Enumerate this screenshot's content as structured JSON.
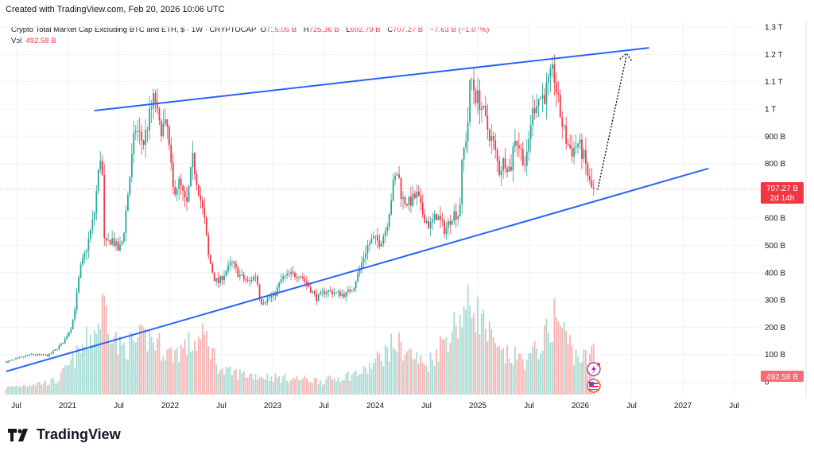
{
  "created_by": "Created with TradingView.com, Feb 20, 2026 10:06 UTC",
  "legend": {
    "title": "Crypto Total Market Cap Excluding BTC and ETH, $ · 1W · CRYPTOCAP",
    "open_label": "O",
    "open": "715.05 B",
    "high_label": "H",
    "high": "725.36 B",
    "low_label": "L",
    "low": "692.79 B",
    "close_label": "C",
    "close": "707.27 B",
    "change": "−7.63 B (−1.07%)",
    "vol_label": "Vol",
    "vol": "492.58 B"
  },
  "price_label": {
    "value": "707.27 B",
    "countdown": "2d 14h"
  },
  "volume_label": "492.58 B",
  "logo_text": "TradingView",
  "icons": [
    "lightning-icon",
    "us-flag-icon",
    "tradingview-logo-icon"
  ],
  "colors": {
    "up": "#26a69a",
    "down": "#f23645",
    "trendline": "#2962ff",
    "up_volume": "#a6dbd4",
    "down_volume": "#f7b3b1"
  },
  "chart_data": {
    "type": "candlestick",
    "interval": "1W",
    "x_unit": "decimal year",
    "y_unit": "B",
    "ylim": [
      0,
      1300
    ],
    "y_ticks": [
      {
        "v": 1300,
        "label": "1.3 T"
      },
      {
        "v": 1200,
        "label": "1.2 T"
      },
      {
        "v": 1100,
        "label": "1.1 T"
      },
      {
        "v": 1000,
        "label": "1 T"
      },
      {
        "v": 900,
        "label": "900 B"
      },
      {
        "v": 800,
        "label": "800 B"
      },
      {
        "v": 600,
        "label": "600 B"
      },
      {
        "v": 500,
        "label": "500 B"
      },
      {
        "v": 400,
        "label": "400 B"
      },
      {
        "v": 300,
        "label": "300 B"
      },
      {
        "v": 200,
        "label": "200 B"
      },
      {
        "v": 100,
        "label": "100 B"
      },
      {
        "v": 0,
        "label": "0"
      }
    ],
    "x_ticks": [
      {
        "t": 2020.5,
        "label": "Jul"
      },
      {
        "t": 2021,
        "label": "2021"
      },
      {
        "t": 2021.5,
        "label": "Jul"
      },
      {
        "t": 2022,
        "label": "2022"
      },
      {
        "t": 2022.5,
        "label": "Jul"
      },
      {
        "t": 2023,
        "label": "2023"
      },
      {
        "t": 2023.5,
        "label": "Jul"
      },
      {
        "t": 2024,
        "label": "2024"
      },
      {
        "t": 2024.5,
        "label": "Jul"
      },
      {
        "t": 2025,
        "label": "2025"
      },
      {
        "t": 2025.5,
        "label": "Jul"
      },
      {
        "t": 2026,
        "label": "2026"
      },
      {
        "t": 2026.5,
        "label": "Jul"
      },
      {
        "t": 2027,
        "label": "2027"
      },
      {
        "t": 2027.5,
        "label": "Jul"
      }
    ],
    "close_path": [
      [
        2020.4,
        73
      ],
      [
        2020.65,
        100
      ],
      [
        2020.81,
        96
      ],
      [
        2020.88,
        117
      ],
      [
        2020.96,
        146
      ],
      [
        2021.04,
        204
      ],
      [
        2021.08,
        290
      ],
      [
        2021.12,
        408
      ],
      [
        2021.19,
        495
      ],
      [
        2021.26,
        612
      ],
      [
        2021.29,
        730
      ],
      [
        2021.33,
        860
      ],
      [
        2021.36,
        495
      ],
      [
        2021.43,
        525
      ],
      [
        2021.5,
        480
      ],
      [
        2021.54,
        525
      ],
      [
        2021.6,
        730
      ],
      [
        2021.66,
        933
      ],
      [
        2021.74,
        875
      ],
      [
        2021.81,
        990
      ],
      [
        2021.85,
        1050
      ],
      [
        2021.89,
        933
      ],
      [
        2021.97,
        933
      ],
      [
        2022.03,
        700
      ],
      [
        2022.09,
        730
      ],
      [
        2022.16,
        641
      ],
      [
        2022.22,
        816
      ],
      [
        2022.28,
        700
      ],
      [
        2022.34,
        583
      ],
      [
        2022.37,
        466
      ],
      [
        2022.43,
        379
      ],
      [
        2022.47,
        364
      ],
      [
        2022.55,
        408
      ],
      [
        2022.6,
        437
      ],
      [
        2022.67,
        393
      ],
      [
        2022.76,
        364
      ],
      [
        2022.84,
        393
      ],
      [
        2022.88,
        291
      ],
      [
        2022.96,
        306
      ],
      [
        2023.02,
        320
      ],
      [
        2023.09,
        379
      ],
      [
        2023.17,
        393
      ],
      [
        2023.27,
        393
      ],
      [
        2023.35,
        350
      ],
      [
        2023.43,
        306
      ],
      [
        2023.52,
        335
      ],
      [
        2023.6,
        326
      ],
      [
        2023.71,
        320
      ],
      [
        2023.79,
        350
      ],
      [
        2023.87,
        437
      ],
      [
        2023.92,
        495
      ],
      [
        2023.98,
        525
      ],
      [
        2024.05,
        510
      ],
      [
        2024.11,
        568
      ],
      [
        2024.18,
        730
      ],
      [
        2024.22,
        773
      ],
      [
        2024.26,
        670
      ],
      [
        2024.33,
        656
      ],
      [
        2024.41,
        685
      ],
      [
        2024.45,
        627
      ],
      [
        2024.53,
        568
      ],
      [
        2024.6,
        612
      ],
      [
        2024.68,
        554
      ],
      [
        2024.76,
        618
      ],
      [
        2024.82,
        612
      ],
      [
        2024.85,
        816
      ],
      [
        2024.9,
        933
      ],
      [
        2024.93,
        1122
      ],
      [
        2024.98,
        1050
      ],
      [
        2025.03,
        1020
      ],
      [
        2025.09,
        933
      ],
      [
        2025.15,
        875
      ],
      [
        2025.21,
        773
      ],
      [
        2025.26,
        816
      ],
      [
        2025.32,
        773
      ],
      [
        2025.36,
        904
      ],
      [
        2025.42,
        846
      ],
      [
        2025.47,
        787
      ],
      [
        2025.52,
        962
      ],
      [
        2025.57,
        1035
      ],
      [
        2025.65,
        1050
      ],
      [
        2025.69,
        1093
      ],
      [
        2025.74,
        1137
      ],
      [
        2025.79,
        1006
      ],
      [
        2025.83,
        933
      ],
      [
        2025.87,
        875
      ],
      [
        2025.92,
        846
      ],
      [
        2025.98,
        875
      ],
      [
        2026.04,
        816
      ],
      [
        2026.09,
        729
      ],
      [
        2026.12,
        700
      ],
      [
        2026.14,
        707.27
      ]
    ],
    "volume_path": [
      [
        2020.4,
        60
      ],
      [
        2020.9,
        120
      ],
      [
        2021.1,
        350
      ],
      [
        2021.3,
        600
      ],
      [
        2021.35,
        800
      ],
      [
        2021.5,
        400
      ],
      [
        2021.8,
        500
      ],
      [
        2022.0,
        350
      ],
      [
        2022.35,
        500
      ],
      [
        2022.5,
        200
      ],
      [
        2023.0,
        150
      ],
      [
        2023.5,
        120
      ],
      [
        2023.9,
        200
      ],
      [
        2024.2,
        450
      ],
      [
        2024.5,
        250
      ],
      [
        2024.85,
        700
      ],
      [
        2024.95,
        800
      ],
      [
        2025.2,
        350
      ],
      [
        2025.5,
        300
      ],
      [
        2025.7,
        550
      ],
      [
        2025.75,
        700
      ],
      [
        2025.95,
        350
      ],
      [
        2026.1,
        300
      ],
      [
        2026.14,
        492.58
      ]
    ],
    "last_price": 707.27,
    "trendlines": [
      {
        "role": "resistance",
        "from": [
          2021.26,
          994
        ],
        "to": [
          2026.67,
          1224
        ]
      },
      {
        "role": "support",
        "from": [
          2020.4,
          38
        ],
        "to": [
          2027.25,
          782
        ]
      }
    ],
    "projection": {
      "style": "dotted-arrow",
      "from": [
        2026.17,
        705
      ],
      "to": [
        2026.45,
        1195
      ]
    }
  }
}
